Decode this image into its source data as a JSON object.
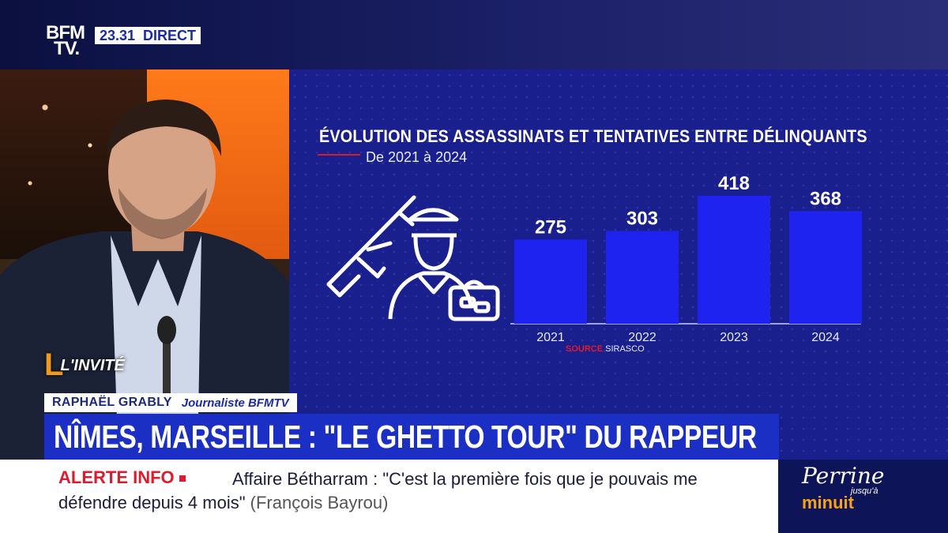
{
  "channel": {
    "logo_line1": "BFM",
    "logo_line2": "TV.",
    "time": "23.31",
    "live": "DIRECT"
  },
  "chart_data": {
    "type": "bar",
    "title": "ÉVOLUTION DES ASSASSINATS ET TENTATIVES ENTRE DÉLINQUANTS",
    "subtitle": "De 2021 à 2024",
    "categories": [
      "2021",
      "2022",
      "2023",
      "2024"
    ],
    "values": [
      275,
      303,
      418,
      368
    ],
    "ylim": [
      0,
      418
    ],
    "source_label": "SOURCE",
    "source_value": "SIRASCO",
    "bar_color": "#1f23f0",
    "accent_color": "#e0192d"
  },
  "guest": {
    "segment": "L'INVITÉ",
    "segment_mark": "L",
    "name": "RAPHAËL GRABLY",
    "role": "Journaliste BFMTV"
  },
  "headline": "NÎMES, MARSEILLE : \"LE GHETTO TOUR\" DU RAPPEUR",
  "ticker": {
    "label": "ALERTE INFO",
    "text": "Affaire Bétharram : \"C'est la première fois que je pouvais me défendre depuis 4 mois\"",
    "attribution": "(François Bayrou)"
  },
  "promo": {
    "line1": "Perrine",
    "line2": "jusqu'à",
    "line3": "minuit"
  }
}
